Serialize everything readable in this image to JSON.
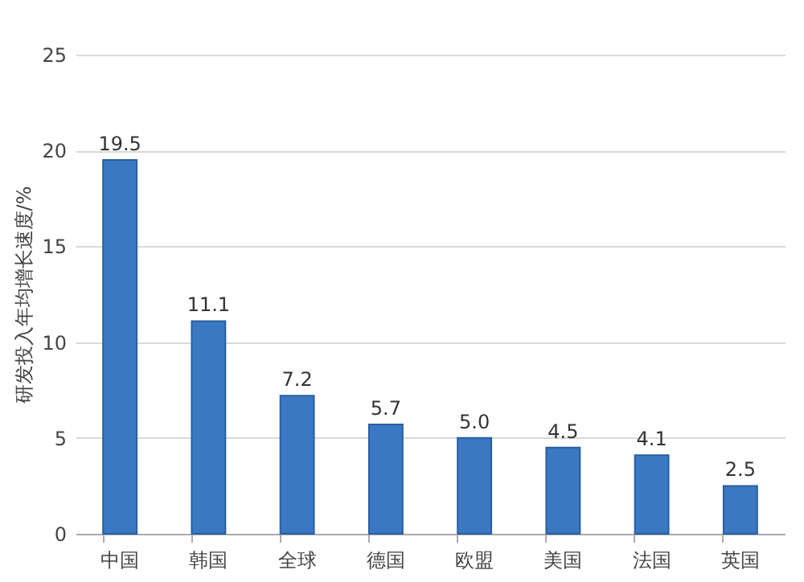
{
  "chart_data": {
    "type": "bar",
    "ylabel": "研发投入年均增长速度/%",
    "categories": [
      "中国",
      "韩国",
      "全球",
      "德国",
      "欧盟",
      "美国",
      "法国",
      "英国"
    ],
    "values": [
      19.5,
      11.1,
      7.2,
      5.7,
      5.0,
      4.5,
      4.1,
      2.5
    ],
    "value_labels": [
      "19.5",
      "11.1",
      "7.2",
      "5.7",
      "5.0",
      "4.5",
      "4.1",
      "2.5"
    ],
    "color": "#3b78c3",
    "ylim": [
      0,
      25
    ],
    "yticks": [
      0,
      5,
      10,
      15,
      20,
      25
    ],
    "grid": "y"
  }
}
